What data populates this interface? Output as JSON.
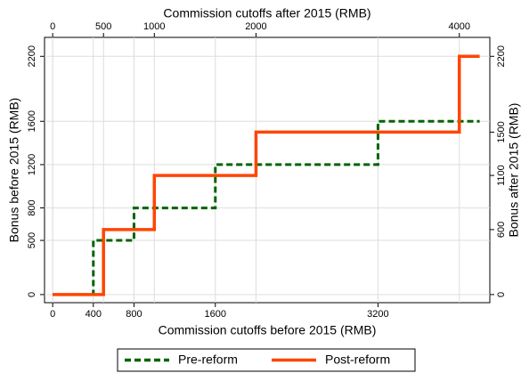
{
  "chart_data": {
    "type": "line",
    "xlabel": "Commission cutoffs before 2015 (RMB)",
    "x2label": "Commission cutoffs after 2015 (RMB)",
    "ylabel": "Bonus before 2015 (RMB)",
    "y2label": "Bonus after 2015 (RMB)",
    "xlim": [
      -80,
      4300
    ],
    "xticks": [
      0,
      400,
      800,
      1600,
      3200
    ],
    "x2lim": [
      -80,
      4300
    ],
    "x2ticks": [
      0,
      500,
      1000,
      2000,
      4000
    ],
    "ylim": [
      -75,
      2375
    ],
    "yticks": [
      0,
      500,
      800,
      1200,
      1600,
      2200
    ],
    "y2lim": [
      -75,
      2375
    ],
    "y2ticks": [
      0,
      600,
      1100,
      1500,
      2200
    ],
    "grid": true,
    "legend": "bottom",
    "series": [
      {
        "name": "Pre-reform",
        "color": "#006400",
        "dash": true,
        "x": [
          0,
          400,
          400,
          800,
          800,
          1600,
          1600,
          3200,
          3200,
          4200
        ],
        "values": [
          0,
          0,
          500,
          500,
          800,
          800,
          1200,
          1200,
          1600,
          1600
        ]
      },
      {
        "name": "Post-reform",
        "color": "#ff4500",
        "dash": false,
        "axis": "y2",
        "x_axis": "x2",
        "x": [
          0,
          500,
          500,
          1000,
          1000,
          2000,
          2000,
          4000,
          4000,
          4200
        ],
        "values": [
          0,
          0,
          600,
          600,
          1100,
          1100,
          1500,
          1500,
          2200,
          2200
        ]
      }
    ]
  }
}
